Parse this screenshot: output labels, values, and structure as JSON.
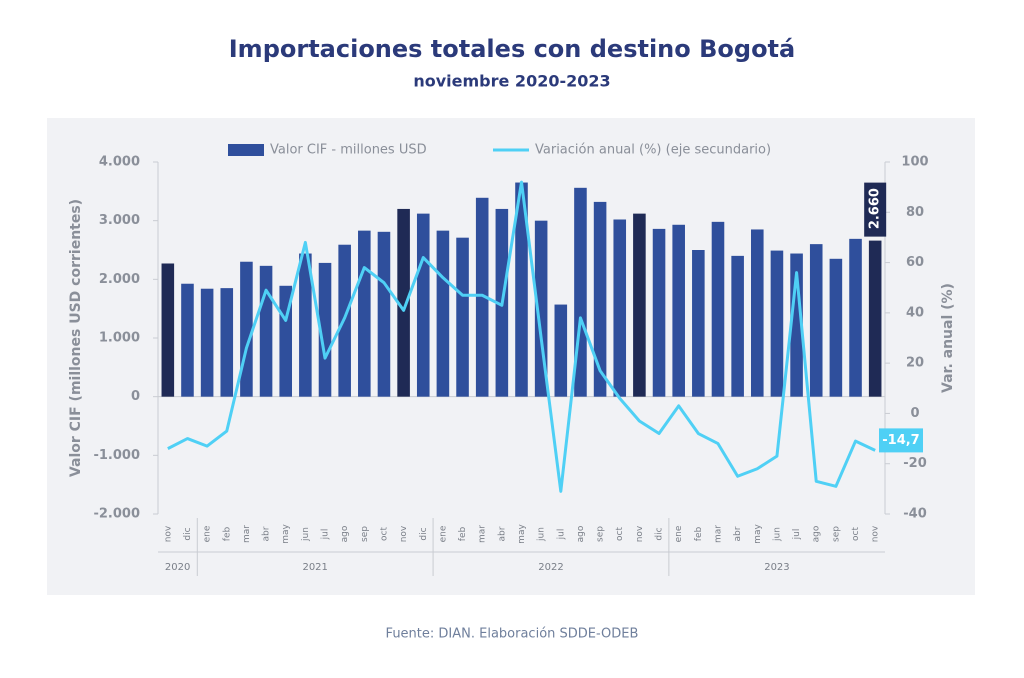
{
  "chart_data": {
    "type": "bar-line",
    "title": "Importaciones totales con destino Bogotá",
    "subtitle": "noviembre 2020-2023",
    "y_label": "Valor CIF (millones USD corrientes)",
    "y2_label": "Var. anual (%)",
    "source": "Fuente: DIAN. Elaboración SDDE-ODEB",
    "categories": [
      "nov",
      "dic",
      "ene",
      "feb",
      "mar",
      "abr",
      "may",
      "jun",
      "jul",
      "ago",
      "sep",
      "oct",
      "nov",
      "dic",
      "ene",
      "feb",
      "mar",
      "abr",
      "may",
      "jun",
      "jul",
      "ago",
      "sep",
      "oct",
      "nov",
      "dic",
      "ene",
      "feb",
      "mar",
      "abr",
      "may",
      "jun",
      "jul",
      "ago",
      "sep",
      "oct",
      "nov"
    ],
    "years": [
      "2020",
      "2021",
      "2022",
      "2023"
    ],
    "ylim": [
      -2000,
      4000
    ],
    "yticks": [
      {
        "value": 4000,
        "label": "4.000"
      },
      {
        "value": 3000,
        "label": "3.000"
      },
      {
        "value": 2000,
        "label": "2.000"
      },
      {
        "value": 1000,
        "label": "1.000"
      },
      0,
      {
        "value": -1000,
        "label": "-1.000"
      },
      {
        "value": -2000,
        "label": "-2.000"
      }
    ],
    "y2lim": [
      -40,
      100
    ],
    "y2ticks": [
      100,
      80,
      60,
      40,
      20,
      0,
      -20,
      -40
    ],
    "series": [
      {
        "name": "Valor CIF - millones USD",
        "type": "bar",
        "color": "#2f4f9c",
        "colors": [
          "#1f2a55",
          "#2f4f9c",
          "#2f4f9c",
          "#2f4f9c",
          "#2f4f9c",
          "#2f4f9c",
          "#2f4f9c",
          "#2f4f9c",
          "#2f4f9c",
          "#2f4f9c",
          "#2f4f9c",
          "#2f4f9c",
          "#1f2a55",
          "#2f4f9c",
          "#2f4f9c",
          "#2f4f9c",
          "#2f4f9c",
          "#2f4f9c",
          "#2f4f9c",
          "#2f4f9c",
          "#2f4f9c",
          "#2f4f9c",
          "#2f4f9c",
          "#2f4f9c",
          "#1f2a55",
          "#2f4f9c",
          "#2f4f9c",
          "#2f4f9c",
          "#2f4f9c",
          "#2f4f9c",
          "#2f4f9c",
          "#2f4f9c",
          "#2f4f9c",
          "#2f4f9c",
          "#2f4f9c",
          "#2f4f9c",
          "#1f2a55"
        ],
        "values": [
          2270,
          1925,
          1840,
          1850,
          2300,
          2230,
          1890,
          2440,
          2280,
          2590,
          2830,
          2810,
          3200,
          3120,
          2830,
          2710,
          3390,
          3200,
          3650,
          3000,
          1570,
          3560,
          3320,
          3020,
          3120,
          2860,
          2930,
          2500,
          2980,
          2400,
          2850,
          2490,
          2440,
          2600,
          2350,
          2690,
          2660
        ],
        "value_labels": {
          "36": "2.660"
        }
      },
      {
        "name": "Variación anual (%) (eje secundario)",
        "type": "line",
        "axis": "y2",
        "color": "#4fd0f5",
        "values": [
          -14,
          -10,
          -13,
          -7,
          26,
          49,
          37,
          68,
          22,
          38,
          58,
          52,
          41,
          62,
          54,
          47,
          47,
          43,
          92,
          30,
          -31,
          38,
          17,
          6,
          -3,
          -8,
          3,
          -8,
          -12,
          -25,
          -22,
          -17,
          56,
          -27,
          -29,
          -11,
          -14.7
        ],
        "value_labels": {
          "36": "-14,7"
        }
      }
    ]
  }
}
